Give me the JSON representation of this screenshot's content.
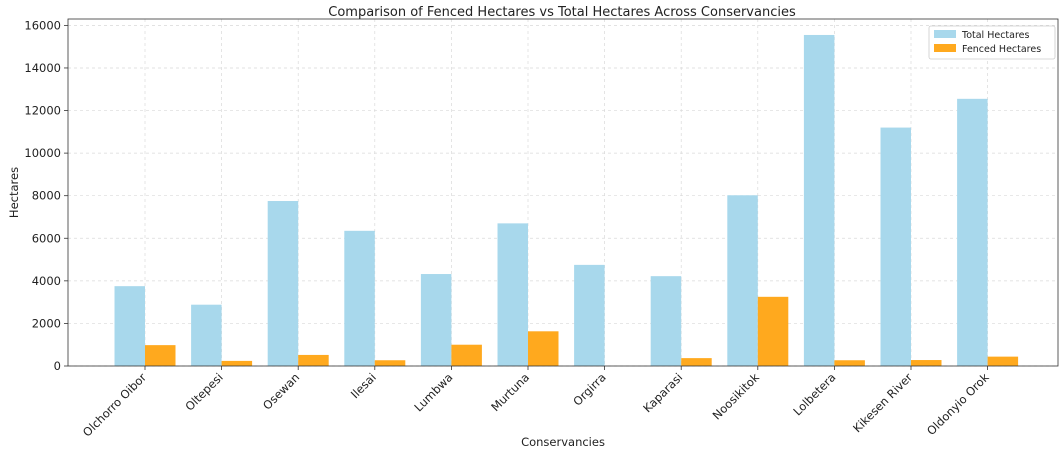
{
  "chart_data": {
    "type": "bar",
    "title": "Comparison of Fenced Hectares vs Total Hectares Across Conservancies",
    "xlabel": "Conservancies",
    "ylabel": "Hectares",
    "ylim": [
      0,
      16300
    ],
    "yticks": [
      0,
      2000,
      4000,
      6000,
      8000,
      10000,
      12000,
      14000,
      16000
    ],
    "grid": true,
    "legend_position": "top-right",
    "categories": [
      "Olchorro Oibor",
      "Oltepesi",
      "Osewan",
      "Ilesai",
      "Lumbwa",
      "Murtuna",
      "Orgirra",
      "Kaparasi",
      "Noosikitok",
      "Lolbetera",
      "Kikesen River",
      "Oldonyio Orok"
    ],
    "series": [
      {
        "name": "Total Hectares",
        "color": "#a8d8ec",
        "values": [
          3750,
          2880,
          7750,
          6350,
          4320,
          6700,
          4750,
          4220,
          8020,
          15550,
          11200,
          12550
        ]
      },
      {
        "name": "Fenced Hectares",
        "color": "#ffa91e",
        "values": [
          980,
          240,
          520,
          270,
          1000,
          1630,
          0,
          370,
          3250,
          270,
          280,
          440
        ]
      }
    ]
  }
}
